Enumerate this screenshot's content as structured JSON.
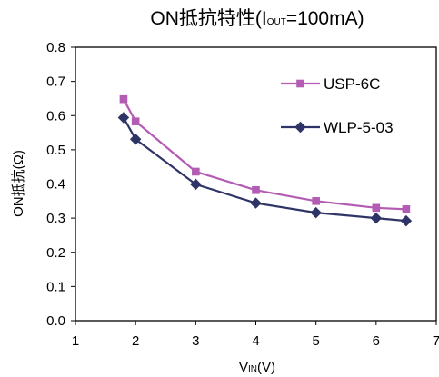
{
  "chart_data": {
    "type": "line",
    "title": "ON抵抗特性(IOUT=100mA)",
    "title_parts": {
      "pre": "ON抵抗特性(I",
      "sub": "OUT",
      "post": "=100mA)"
    },
    "xlabel": "VIN(V)",
    "xlabel_parts": {
      "pre": "V",
      "sub": "IN",
      "post": "(V)"
    },
    "ylabel": "ON抵抗(Ω)",
    "xlim": [
      1,
      7
    ],
    "ylim": [
      0.0,
      0.8
    ],
    "x_ticks": [
      "1",
      "2",
      "3",
      "4",
      "5",
      "6",
      "7"
    ],
    "y_ticks": [
      "0.0",
      "0.1",
      "0.2",
      "0.3",
      "0.4",
      "0.5",
      "0.6",
      "0.7",
      "0.8"
    ],
    "grid": false,
    "legend_position": "upper-right",
    "series": [
      {
        "name": "USP-6C",
        "color": "#b35cb3",
        "marker": "square",
        "x": [
          1.8,
          2.0,
          3.0,
          4.0,
          5.0,
          6.0,
          6.5
        ],
        "y": [
          0.648,
          0.583,
          0.436,
          0.382,
          0.35,
          0.33,
          0.326
        ]
      },
      {
        "name": "WLP-5-03",
        "color": "#2e3566",
        "marker": "diamond",
        "x": [
          1.8,
          2.0,
          3.0,
          4.0,
          5.0,
          6.0,
          6.5
        ],
        "y": [
          0.594,
          0.531,
          0.399,
          0.344,
          0.316,
          0.3,
          0.292
        ]
      }
    ]
  }
}
